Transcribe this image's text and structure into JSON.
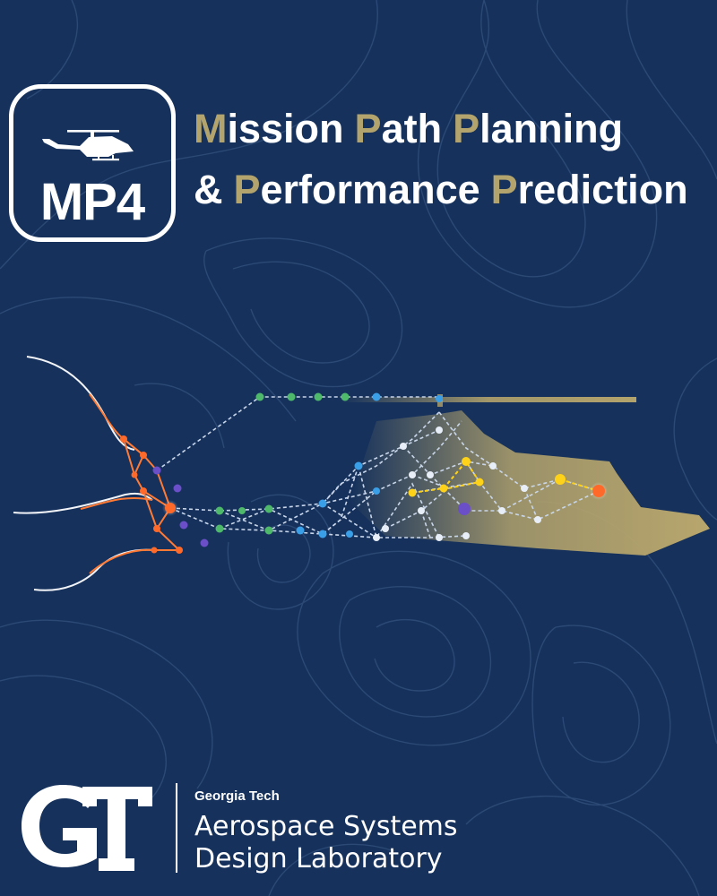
{
  "colors": {
    "background": "#15315c",
    "gold": "#b3a36c",
    "white": "#ffffff",
    "orange": "#ff6a2a",
    "purple": "#6b4fc8",
    "green": "#4fb96b",
    "blue": "#3b9fe8",
    "yellow": "#ffd21a"
  },
  "badge": {
    "icon": "helicopter-icon",
    "text": "MP4"
  },
  "title": {
    "line1": [
      {
        "cap": "M",
        "rest": "ission"
      },
      {
        "cap": "P",
        "rest": "ath"
      },
      {
        "cap": "P",
        "rest": "lanning"
      }
    ],
    "line2": [
      {
        "cap": "",
        "rest": "&"
      },
      {
        "cap": "P",
        "rest": "erformance"
      },
      {
        "cap": "P",
        "rest": "rediction"
      }
    ]
  },
  "footer": {
    "logo": "gt-logo",
    "org_small": "Georgia Tech",
    "org_line1": "Aerospace Systems",
    "org_line2": "Design Laboratory"
  }
}
